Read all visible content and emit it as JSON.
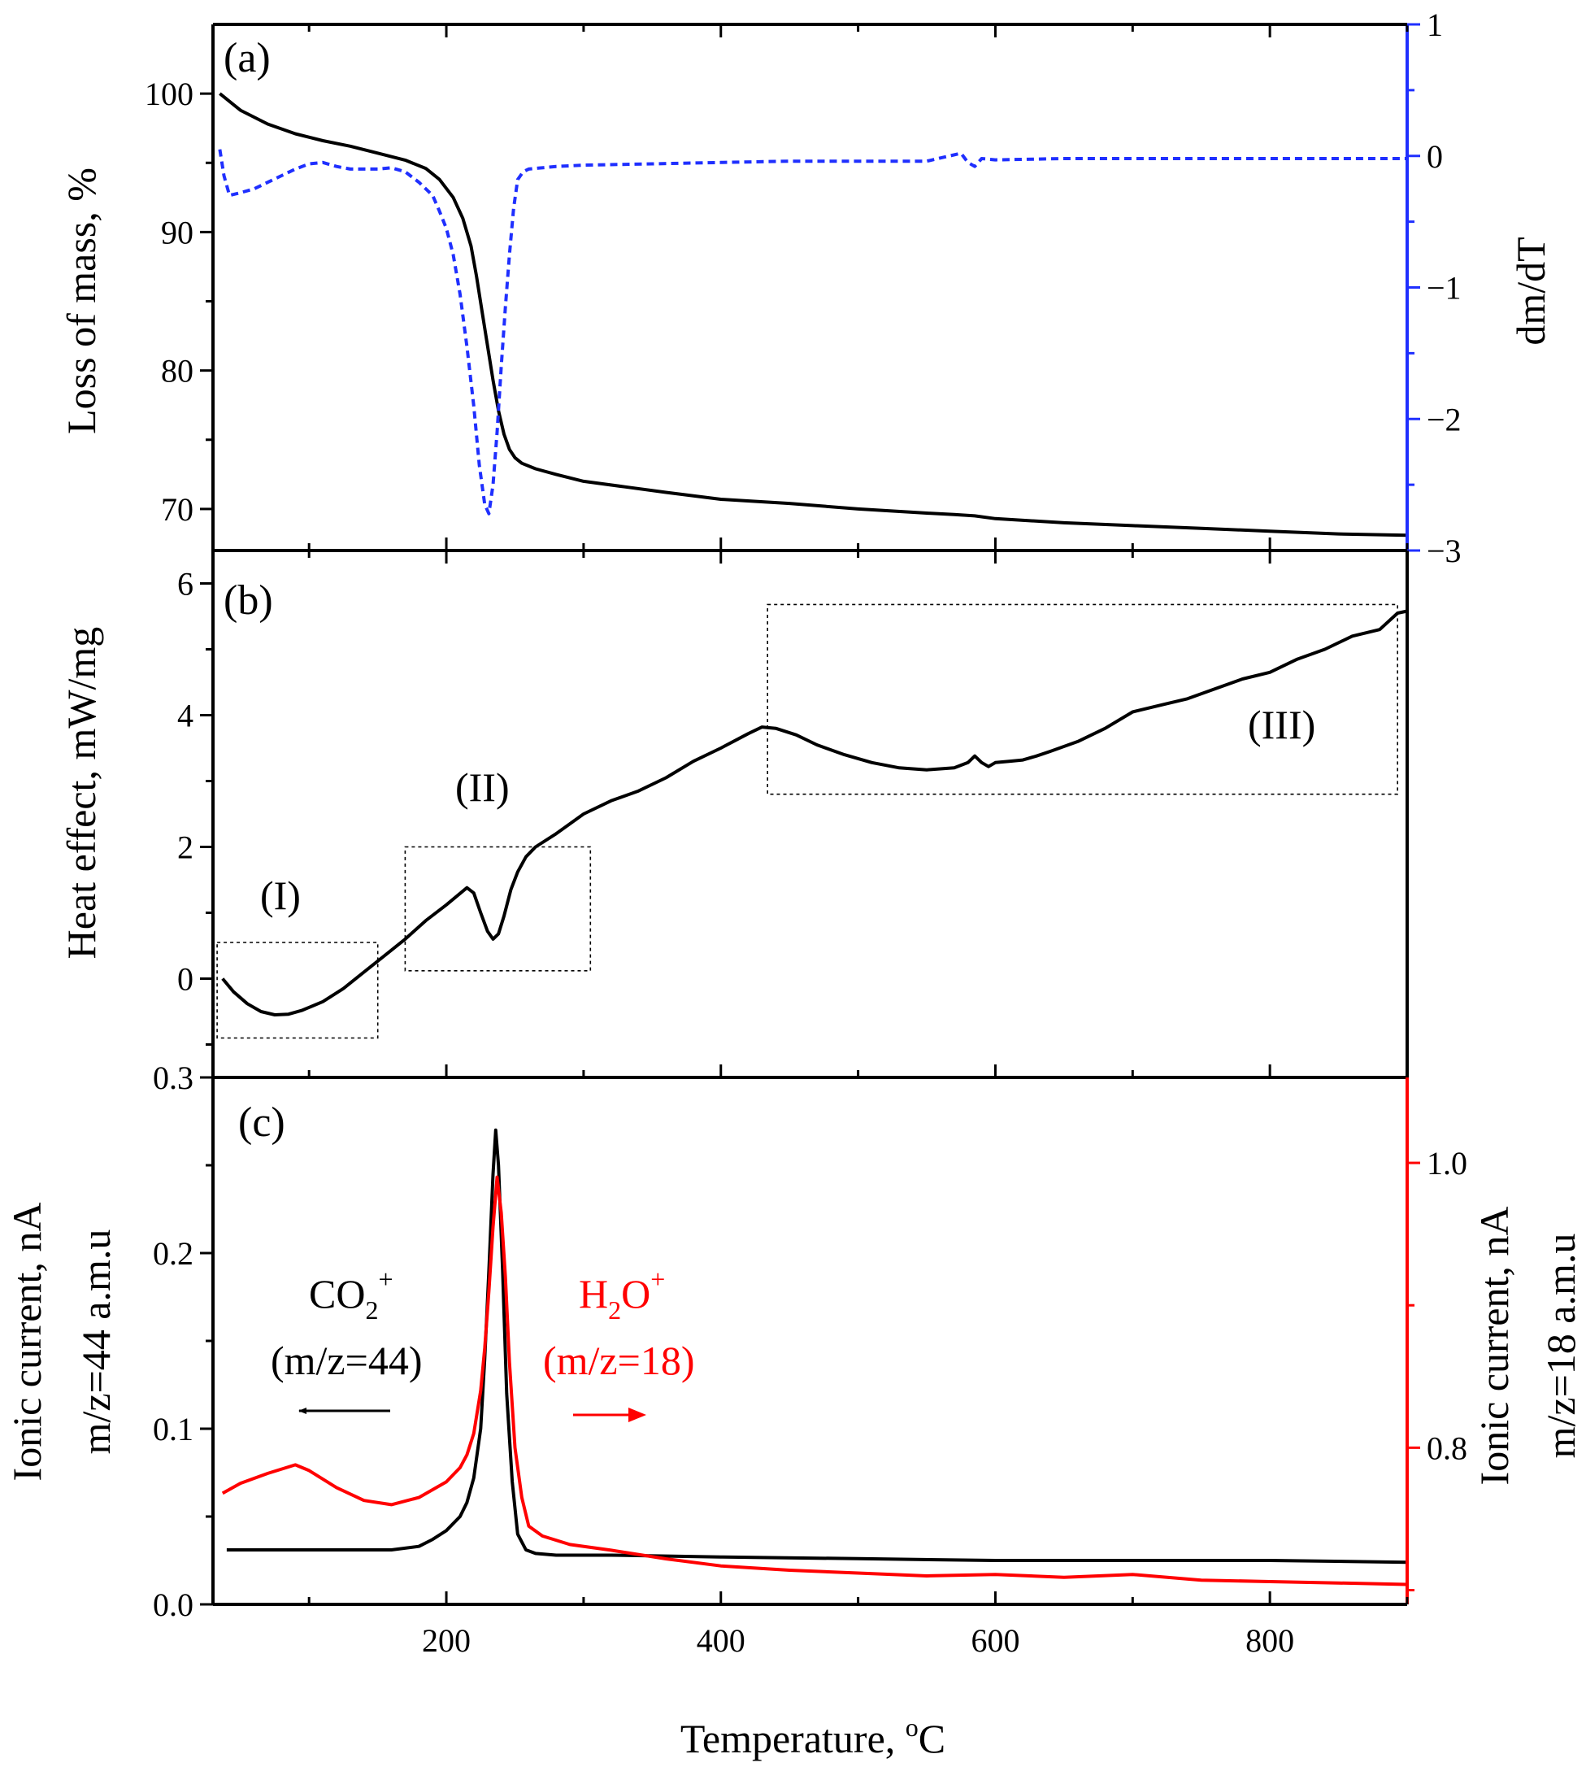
{
  "chart_data": [
    {
      "id": "a",
      "type": "line",
      "panel_label": "(a)",
      "xlim": [
        30,
        900
      ],
      "ylabel": "Loss of mass, %",
      "ylim": [
        67,
        105
      ],
      "yticks": [
        70,
        80,
        90,
        100
      ],
      "y2label": "dm/dT",
      "y2lim": [
        -3,
        1
      ],
      "y2ticks": [
        -3,
        -2,
        -1,
        0,
        1
      ],
      "y2tick_labels": [
        "−3",
        "−2",
        "−1",
        "0",
        "1"
      ],
      "colors": {
        "mass": "#000000",
        "dmdt": "#1f2fff"
      },
      "series": [
        {
          "name": "mass",
          "axis": "left",
          "style": "solid",
          "x": [
            35,
            50,
            70,
            90,
            110,
            130,
            150,
            170,
            185,
            195,
            205,
            212,
            218,
            222,
            226,
            230,
            234,
            238,
            242,
            246,
            250,
            255,
            265,
            280,
            300,
            330,
            360,
            400,
            450,
            500,
            550,
            570,
            585,
            600,
            650,
            700,
            750,
            800,
            850,
            900
          ],
          "y": [
            100.0,
            98.8,
            97.8,
            97.1,
            96.6,
            96.2,
            95.7,
            95.2,
            94.6,
            93.8,
            92.5,
            91.0,
            89.0,
            86.8,
            84.3,
            81.8,
            79.3,
            77.1,
            75.4,
            74.3,
            73.7,
            73.3,
            72.9,
            72.5,
            72.0,
            71.6,
            71.2,
            70.7,
            70.4,
            70.0,
            69.7,
            69.6,
            69.5,
            69.3,
            69.0,
            68.8,
            68.6,
            68.4,
            68.2,
            68.1
          ]
        },
        {
          "name": "dm/dT",
          "axis": "right",
          "style": "dashed",
          "x": [
            35,
            38,
            42,
            50,
            60,
            70,
            80,
            90,
            100,
            110,
            120,
            130,
            140,
            150,
            160,
            170,
            180,
            190,
            195,
            200,
            205,
            210,
            215,
            220,
            224,
            228,
            231,
            234,
            237,
            240,
            243,
            246,
            249,
            252,
            256,
            260,
            280,
            300,
            350,
            400,
            450,
            500,
            550,
            575,
            580,
            585,
            590,
            600,
            650,
            700,
            750,
            800,
            850,
            900
          ],
          "y": [
            0.05,
            -0.15,
            -0.3,
            -0.28,
            -0.25,
            -0.2,
            -0.15,
            -0.1,
            -0.06,
            -0.05,
            -0.08,
            -0.1,
            -0.1,
            -0.1,
            -0.09,
            -0.12,
            -0.2,
            -0.3,
            -0.42,
            -0.55,
            -0.75,
            -1.05,
            -1.45,
            -1.9,
            -2.35,
            -2.65,
            -2.72,
            -2.5,
            -2.1,
            -1.6,
            -1.15,
            -0.75,
            -0.4,
            -0.18,
            -0.12,
            -0.1,
            -0.08,
            -0.07,
            -0.06,
            -0.05,
            -0.04,
            -0.04,
            -0.04,
            0.02,
            -0.05,
            -0.08,
            -0.02,
            -0.03,
            -0.02,
            -0.02,
            -0.02,
            -0.02,
            -0.02,
            -0.02
          ]
        }
      ]
    },
    {
      "id": "b",
      "type": "line",
      "panel_label": "(b)",
      "xlim": [
        30,
        900
      ],
      "ylabel": "Heat effect, mW/mg",
      "ylim": [
        -1.5,
        6.5
      ],
      "yticks": [
        0,
        2,
        4,
        6
      ],
      "colors": {
        "heat": "#000000"
      },
      "series": [
        {
          "name": "heat",
          "style": "solid",
          "x": [
            37,
            45,
            55,
            65,
            75,
            85,
            95,
            110,
            125,
            140,
            155,
            170,
            185,
            200,
            215,
            220,
            225,
            230,
            234,
            238,
            242,
            247,
            252,
            258,
            265,
            280,
            300,
            320,
            340,
            360,
            380,
            400,
            420,
            430,
            440,
            455,
            470,
            490,
            510,
            530,
            550,
            570,
            580,
            585,
            590,
            595,
            600,
            610,
            620,
            630,
            640,
            660,
            680,
            700,
            720,
            740,
            760,
            780,
            800,
            820,
            840,
            860,
            880,
            893,
            900
          ],
          "y": [
            0.0,
            -0.2,
            -0.38,
            -0.5,
            -0.55,
            -0.54,
            -0.48,
            -0.35,
            -0.15,
            0.1,
            0.35,
            0.6,
            0.88,
            1.12,
            1.38,
            1.3,
            1.0,
            0.72,
            0.6,
            0.68,
            0.95,
            1.35,
            1.62,
            1.85,
            2.0,
            2.2,
            2.5,
            2.7,
            2.85,
            3.05,
            3.3,
            3.5,
            3.72,
            3.82,
            3.8,
            3.7,
            3.55,
            3.4,
            3.28,
            3.2,
            3.17,
            3.2,
            3.28,
            3.38,
            3.28,
            3.22,
            3.28,
            3.3,
            3.32,
            3.38,
            3.45,
            3.6,
            3.8,
            4.05,
            4.15,
            4.25,
            4.4,
            4.55,
            4.65,
            4.85,
            5.0,
            5.2,
            5.3,
            5.55,
            5.58
          ]
        }
      ],
      "region_labels": [
        "(I)",
        "(II)",
        "(III)"
      ],
      "regions": [
        {
          "label": "(I)",
          "x": [
            33,
            150
          ],
          "y": [
            -0.9,
            0.55
          ]
        },
        {
          "label": "(II)",
          "x": [
            170,
            305
          ],
          "y": [
            0.12,
            2.0
          ]
        },
        {
          "label": "(III)",
          "x": [
            434,
            893
          ],
          "y": [
            2.8,
            5.68
          ]
        }
      ]
    },
    {
      "id": "c",
      "type": "line",
      "panel_label": "(c)",
      "xlim": [
        30,
        900
      ],
      "xlabel": "Temperature,",
      "xlabel_unit_sup": "o",
      "xlabel_unit": "C",
      "xticks": [
        200,
        400,
        600,
        800
      ],
      "ylabel_lines": [
        "Ionic current, nA",
        "m/z=44 a.m.u"
      ],
      "ylim": [
        0,
        0.3
      ],
      "yticks": [
        0.0,
        0.1,
        0.2,
        0.3
      ],
      "ytick_labels": [
        "0.0",
        "0.1",
        "0.2",
        "0.3"
      ],
      "y2label_lines": [
        "Ionic current, nA",
        "m/z=18 a.m.u"
      ],
      "y2lim": [
        0.69,
        1.06
      ],
      "y2ticks": [
        0.8,
        1.0
      ],
      "y2tick_labels": [
        "0.8",
        "1.0"
      ],
      "colors": {
        "co2": "#000000",
        "h2o": "#ff0000"
      },
      "series": [
        {
          "name": "CO2+ (m/z=44)",
          "axis": "left",
          "style": "solid",
          "x": [
            40,
            80,
            120,
            160,
            180,
            190,
            200,
            210,
            215,
            220,
            225,
            228,
            231,
            234,
            236,
            238,
            241,
            244,
            248,
            252,
            258,
            265,
            280,
            320,
            400,
            500,
            600,
            700,
            800,
            900
          ],
          "y": [
            0.031,
            0.031,
            0.031,
            0.031,
            0.033,
            0.037,
            0.042,
            0.05,
            0.058,
            0.072,
            0.1,
            0.14,
            0.19,
            0.245,
            0.27,
            0.25,
            0.19,
            0.12,
            0.07,
            0.04,
            0.031,
            0.029,
            0.028,
            0.028,
            0.027,
            0.026,
            0.025,
            0.025,
            0.025,
            0.024
          ]
        },
        {
          "name": "H2O+ (m/z=18)",
          "axis": "right",
          "style": "solid",
          "x": [
            37,
            50,
            70,
            90,
            100,
            120,
            140,
            160,
            180,
            200,
            210,
            215,
            220,
            225,
            228,
            231,
            234,
            237,
            240,
            243,
            246,
            250,
            255,
            260,
            270,
            290,
            320,
            360,
            400,
            450,
            500,
            550,
            600,
            650,
            700,
            750,
            800,
            850,
            900
          ],
          "y": [
            0.768,
            0.775,
            0.782,
            0.788,
            0.784,
            0.772,
            0.763,
            0.76,
            0.765,
            0.776,
            0.786,
            0.795,
            0.81,
            0.84,
            0.87,
            0.91,
            0.955,
            0.99,
            0.965,
            0.92,
            0.86,
            0.8,
            0.765,
            0.745,
            0.738,
            0.732,
            0.728,
            0.722,
            0.717,
            0.714,
            0.712,
            0.71,
            0.711,
            0.709,
            0.711,
            0.707,
            0.706,
            0.705,
            0.704
          ]
        }
      ],
      "annotations": {
        "co2": {
          "base": "CO",
          "sub": "2",
          "sup": "+",
          "mz": "(m/z=44)"
        },
        "h2o": {
          "base": "H",
          "sub": "2",
          "mid": "O",
          "sup": "+",
          "mz": "(m/z=18)"
        }
      }
    }
  ]
}
